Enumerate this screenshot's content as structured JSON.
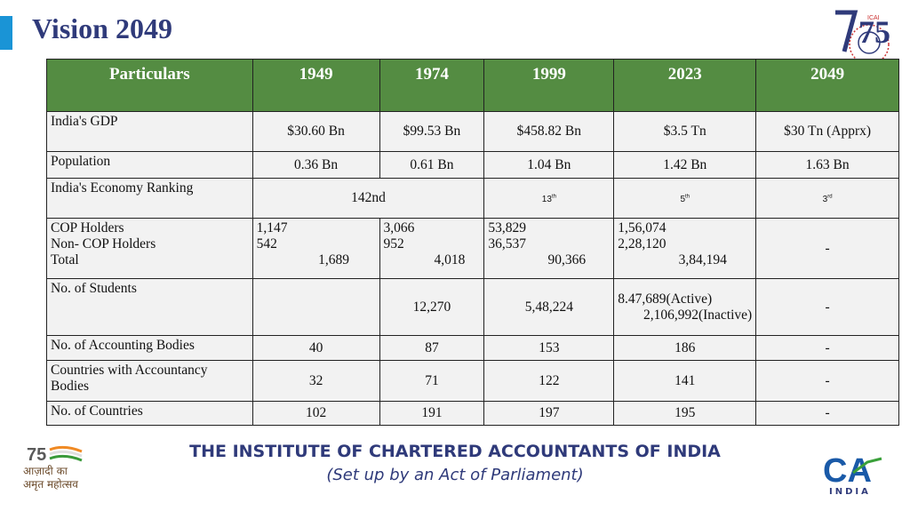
{
  "slide": {
    "title": "Vision 2049"
  },
  "logos": {
    "top_right_number": "75",
    "top_right_text": "ICAI",
    "azadi_line1": "आज़ादी का",
    "azadi_line2": "अमृत महोत्सव",
    "azadi_number": "75",
    "ca_logo_text": "CA",
    "ca_india": "INDIA"
  },
  "table": {
    "headers": [
      "Particulars",
      "1949",
      "1974",
      "1999",
      "2023",
      "2049"
    ],
    "gdp": {
      "label": "India's GDP",
      "v1949": "$30.60 Bn",
      "v1974": "$99.53 Bn",
      "v1999": "$458.82 Bn",
      "v2023": "$3.5 Tn",
      "v2049": "$30 Tn (Apprx)"
    },
    "population": {
      "label": "Population",
      "v1949": "0.36 Bn",
      "v1974": "0.61 Bn",
      "v1999": "1.04 Bn",
      "v2023": "1.42 Bn",
      "v2049": "1.63 Bn"
    },
    "ranking": {
      "label": "India's Economy Ranking",
      "v1949_1974": "142nd",
      "v1999": "13",
      "v1999_sup": "th",
      "v2023": "5",
      "v2023_sup": "th",
      "v2049": "3",
      "v2049_sup": "rd"
    },
    "cop": {
      "label1": "COP Holders",
      "label2": "Non- COP Holders",
      "label3": "Total",
      "c1949": {
        "cop": "1,147",
        "noncop": "542",
        "total": "1,689"
      },
      "c1974": {
        "cop": "3,066",
        "noncop": "952",
        "total": "4,018"
      },
      "c1999": {
        "cop": "53,829",
        "noncop": "36,537",
        "total": "90,366"
      },
      "c2023": {
        "cop": "1,56,074",
        "noncop": "2,28,120",
        "total": "3,84,194"
      },
      "v2049": "-"
    },
    "students": {
      "label": "No. of Students",
      "v1949": "",
      "v1974": "12,270",
      "v1999": "5,48,224",
      "v2023_active": "8.47,689(Active)",
      "v2023_inactive": "2,106,992(Inactive)",
      "v2049": "-"
    },
    "bodies": {
      "label": "No. of Accounting Bodies",
      "v1949": "40",
      "v1974": "87",
      "v1999": "153",
      "v2023": "186",
      "v2049": "-"
    },
    "countries_acc": {
      "label": "Countries with Accountancy Bodies",
      "v1949": "32",
      "v1974": "71",
      "v1999": "122",
      "v2023": "141",
      "v2049": "-"
    },
    "countries": {
      "label": "No. of Countries",
      "v1949": "102",
      "v1974": "191",
      "v1999": "197",
      "v2023": "195",
      "v2049": "-"
    }
  },
  "footer": {
    "title": "THE INSTITUTE OF CHARTERED ACCOUNTANTS OF INDIA",
    "subtitle": "(Set up by an Act of Parliament)"
  }
}
